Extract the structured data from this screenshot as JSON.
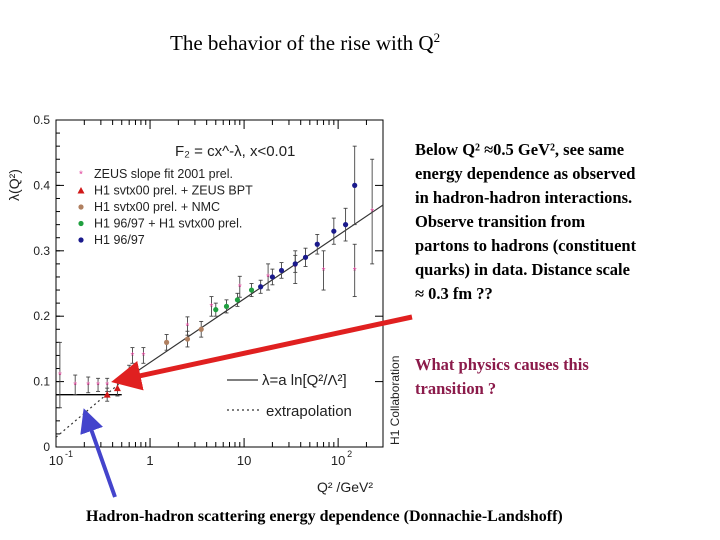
{
  "slide": {
    "title_main": "The behavior of the rise with Q",
    "title_sup": "2",
    "note1_lines": [
      "Below Q² ≈0.5 GeV², see same",
      "energy dependence as observed",
      "in hadron-hadron interactions.",
      "Observe transition from",
      "partons to hadrons (constituent",
      "quarks) in data. Distance scale",
      "≈ 0.3 fm ??"
    ],
    "note2_lines": [
      "What physics causes this",
      "transition ?"
    ],
    "caption": "Hadron-hadron scattering energy dependence (Donnachie-Landshoff)",
    "colors": {
      "arrow_red": "#e02020",
      "arrow_blue": "#4444cc",
      "note_red": "#8b1a4a"
    }
  },
  "chart_data": {
    "type": "scatter",
    "xscale": "log",
    "xlim": [
      0.1,
      300
    ],
    "ylim": [
      0,
      0.5
    ],
    "ylabel": "λ(Q²)",
    "xlabel": "Q² /GeV²",
    "formula": "F₂ = cx^-λ,  x<0.01",
    "side_label": "H1 Collaboration",
    "x_ticks": [
      {
        "value": 0.1,
        "label": "10",
        "sup": "-1"
      },
      {
        "value": 1,
        "label": "1",
        "sup": ""
      },
      {
        "value": 10,
        "label": "10",
        "sup": ""
      },
      {
        "value": 100,
        "label": "10",
        "sup": "2"
      }
    ],
    "y_ticks": [
      {
        "value": 0,
        "label": "0"
      },
      {
        "value": 0.1,
        "label": "0.1"
      },
      {
        "value": 0.2,
        "label": "0.2"
      },
      {
        "value": 0.3,
        "label": "0.3"
      },
      {
        "value": 0.4,
        "label": "0.4"
      },
      {
        "value": 0.5,
        "label": "0.5"
      }
    ],
    "series": [
      {
        "name": "ZEUS slope fit 2001 prel.",
        "color": "#e0409a",
        "marker": "star",
        "points": [
          {
            "x": 0.11,
            "y": 0.11,
            "err": 0.05
          },
          {
            "x": 0.16,
            "y": 0.095,
            "err": 0.015
          },
          {
            "x": 0.22,
            "y": 0.095,
            "err": 0.012
          },
          {
            "x": 0.28,
            "y": 0.095,
            "err": 0.01
          },
          {
            "x": 0.35,
            "y": 0.095,
            "err": 0.01
          },
          {
            "x": 0.65,
            "y": 0.14,
            "err": 0.012
          },
          {
            "x": 0.85,
            "y": 0.14,
            "err": 0.012
          },
          {
            "x": 2.5,
            "y": 0.185,
            "err": 0.014
          },
          {
            "x": 4.5,
            "y": 0.215,
            "err": 0.015
          },
          {
            "x": 9,
            "y": 0.245,
            "err": 0.016
          },
          {
            "x": 18,
            "y": 0.26,
            "err": 0.02
          },
          {
            "x": 35,
            "y": 0.275,
            "err": 0.025
          },
          {
            "x": 70,
            "y": 0.27,
            "err": 0.03
          },
          {
            "x": 150,
            "y": 0.27,
            "err": 0.04
          },
          {
            "x": 230,
            "y": 0.36,
            "err": 0.08
          }
        ]
      },
      {
        "name": "H1 svtx00 prel. + ZEUS BPT",
        "color": "#d01818",
        "marker": "triangle",
        "points": [
          {
            "x": 0.35,
            "y": 0.08,
            "err": 0.01
          },
          {
            "x": 0.45,
            "y": 0.09,
            "err": 0.012
          },
          {
            "x": 0.6,
            "y": 0.11,
            "err": 0.015
          }
        ]
      },
      {
        "name": "H1 svtx00 prel. + NMC",
        "color": "#b08060",
        "marker": "dot",
        "points": [
          {
            "x": 1.5,
            "y": 0.16,
            "err": 0.012
          },
          {
            "x": 2.5,
            "y": 0.165,
            "err": 0.012
          },
          {
            "x": 3.5,
            "y": 0.18,
            "err": 0.012
          }
        ]
      },
      {
        "name": "H1 96/97 + H1 svtx00 prel.",
        "color": "#20a040",
        "marker": "dot",
        "points": [
          {
            "x": 5,
            "y": 0.21,
            "err": 0.01
          },
          {
            "x": 6.5,
            "y": 0.215,
            "err": 0.01
          },
          {
            "x": 8.5,
            "y": 0.225,
            "err": 0.01
          },
          {
            "x": 12,
            "y": 0.24,
            "err": 0.01
          }
        ]
      },
      {
        "name": "H1 96/97",
        "color": "#1a1a8c",
        "marker": "dot",
        "points": [
          {
            "x": 15,
            "y": 0.245,
            "err": 0.01
          },
          {
            "x": 20,
            "y": 0.26,
            "err": 0.012
          },
          {
            "x": 25,
            "y": 0.27,
            "err": 0.012
          },
          {
            "x": 35,
            "y": 0.28,
            "err": 0.013
          },
          {
            "x": 45,
            "y": 0.29,
            "err": 0.014
          },
          {
            "x": 60,
            "y": 0.31,
            "err": 0.015
          },
          {
            "x": 90,
            "y": 0.33,
            "err": 0.02
          },
          {
            "x": 120,
            "y": 0.34,
            "err": 0.025
          },
          {
            "x": 150,
            "y": 0.4,
            "err": 0.06
          }
        ]
      }
    ],
    "fit_lines": [
      {
        "name": "λ=a ln[Q²/Λ²]",
        "style": "solid",
        "x": [
          0.5,
          300
        ],
        "y": [
          0.1,
          0.37
        ]
      },
      {
        "name": "extrapolation",
        "style": "dotted",
        "x": [
          0.1,
          0.5
        ],
        "y": [
          0.015,
          0.1
        ]
      }
    ],
    "hadron_line": {
      "x": [
        0.1,
        0.5
      ],
      "y": 0.08
    }
  }
}
